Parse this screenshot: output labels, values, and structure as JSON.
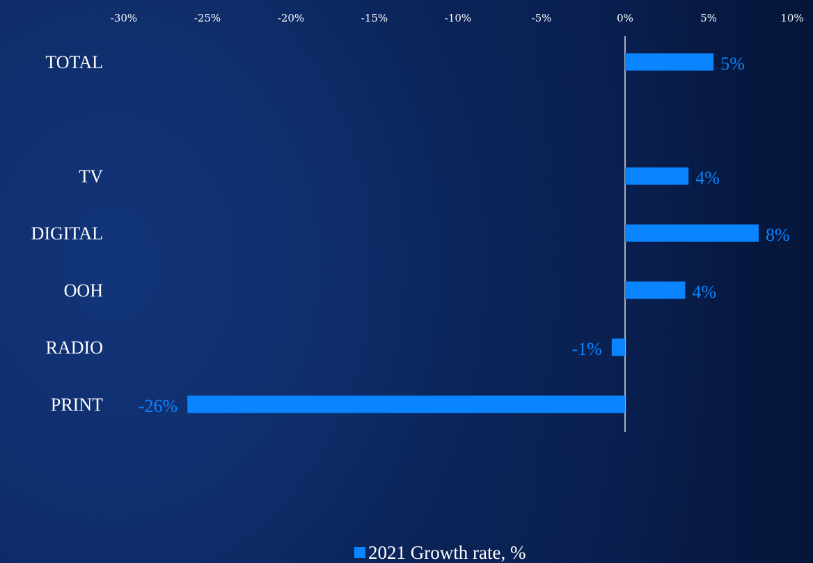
{
  "chart_data": {
    "type": "bar",
    "orientation": "horizontal",
    "categories": [
      "TOTAL",
      "",
      "TV",
      "DIGITAL",
      "OOH",
      "RADIO",
      "PRINT"
    ],
    "series": [
      {
        "name": "2021 Growth rate, %",
        "values": [
          5.3,
          null,
          3.8,
          8.0,
          3.6,
          -0.8,
          -26.2
        ],
        "labels": [
          "5%",
          "",
          "4%",
          "8%",
          "4%",
          "-1%",
          "-26%"
        ]
      }
    ],
    "xlim": [
      -30,
      10
    ],
    "xticks": [
      -30,
      -25,
      -20,
      -15,
      -10,
      -5,
      0,
      5,
      10
    ],
    "xtick_labels": [
      "-30%",
      "-25%",
      "-20%",
      "-15%",
      "-10%",
      "-5%",
      "0%",
      "5%",
      "10%"
    ],
    "axis_position": "top",
    "grid": false,
    "legend": "bottom-center",
    "colors": {
      "bar": "#0a84ff",
      "label": "#0a84ff",
      "text": "#ffffff",
      "axis": "#ffffff"
    }
  }
}
